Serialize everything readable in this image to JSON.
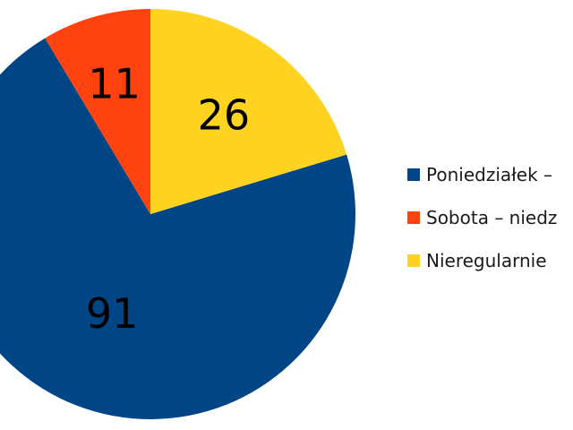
{
  "chart_data": {
    "type": "pie",
    "slices": [
      {
        "label": "Poniedziałek –",
        "value": 91,
        "color": "#004586"
      },
      {
        "label": "Sobota – niedz",
        "value": 11,
        "color": "#ff420e"
      },
      {
        "label": "Nieregularnie",
        "value": 26,
        "color": "#ffd320"
      }
    ],
    "start_angle_deg": 0,
    "direction": "counterclockwise-from-top",
    "legend_position": "right",
    "data_labels": true
  }
}
